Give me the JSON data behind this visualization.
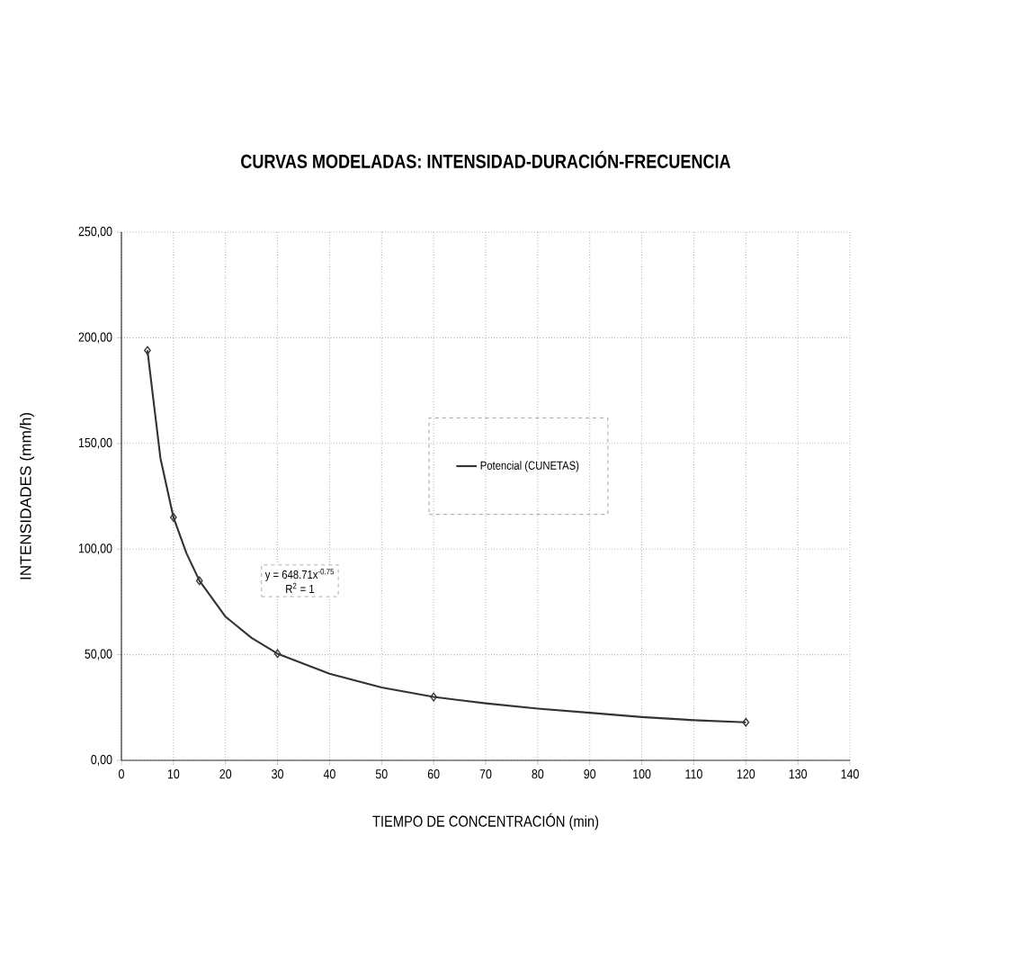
{
  "chart_data": {
    "type": "line",
    "title": "CURVAS MODELADAS: INTENSIDAD-DURACIÓN-FRECUENCIA",
    "xlabel": "TIEMPO DE CONCENTRACIÓN (min)",
    "ylabel": "INTENSIDADES (mm/h)",
    "xlim": [
      0,
      140
    ],
    "xticks": [
      0,
      10,
      20,
      30,
      40,
      50,
      60,
      70,
      80,
      90,
      100,
      110,
      120,
      130,
      140
    ],
    "ylim": [
      0,
      250
    ],
    "yticks": [
      {
        "value": 0,
        "label": "0,00"
      },
      {
        "value": 50,
        "label": "50,00"
      },
      {
        "value": 100,
        "label": "100,00"
      },
      {
        "value": 150,
        "label": "150,00"
      },
      {
        "value": 200,
        "label": "200,00"
      },
      {
        "value": 250,
        "label": "250,00"
      }
    ],
    "grid": true,
    "legend": "center",
    "series": [
      {
        "type": "scatter",
        "color": "#333333",
        "marker": "diamond",
        "x": [
          5,
          10,
          15,
          30,
          60,
          120
        ],
        "values": [
          194,
          115,
          85,
          50.5,
          30,
          18
        ]
      },
      {
        "name": "Potencial (CUNETAS)",
        "color": "#333333",
        "line_style": "solid",
        "x": [
          5,
          7.5,
          10,
          12.5,
          15,
          20,
          25,
          30,
          40,
          50,
          60,
          70,
          80,
          90,
          100,
          110,
          120
        ],
        "values": [
          194,
          143,
          115,
          98,
          85,
          68,
          58,
          50.5,
          41,
          34.5,
          30,
          27,
          24.5,
          22.5,
          20.5,
          19,
          18
        ]
      }
    ],
    "annotations": [
      "y = 648.71x$^{-0.75}$",
      "R$^{2}$ = 1"
    ]
  }
}
